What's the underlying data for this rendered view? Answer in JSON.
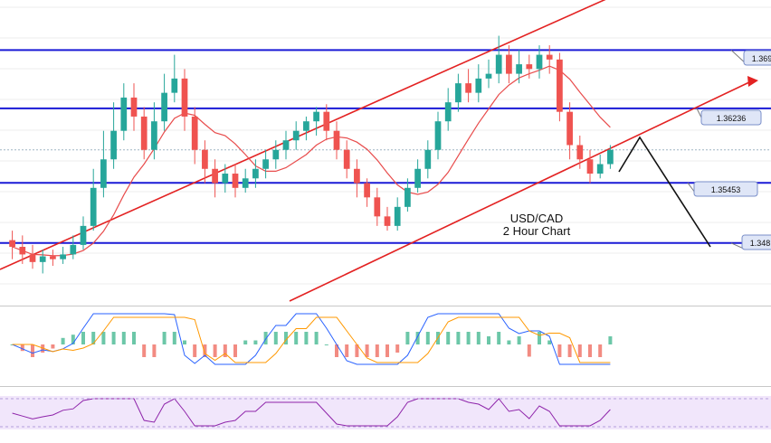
{
  "chart_data": {
    "type": "candlestick",
    "annotation": {
      "line1": "USD/CAD",
      "line2": "2 Hour Chart"
    },
    "price_axis": {
      "ylim": [
        1.342,
        1.373
      ]
    },
    "levels": [
      {
        "label": "1.369",
        "value": 1.3685
      },
      {
        "label": "1.36236",
        "value": 1.36236
      },
      {
        "label": "1.35453",
        "value": 1.35453
      },
      {
        "label": "1.348",
        "value": 1.3482
      }
    ],
    "current_price": 1.358,
    "candles": [
      [
        0,
        1.3485,
        1.3478,
        1.3495,
        1.3465
      ],
      [
        1,
        1.3478,
        1.347,
        1.349,
        1.346
      ],
      [
        2,
        1.347,
        1.3462,
        1.348,
        1.3455
      ],
      [
        3,
        1.3462,
        1.3468,
        1.3475,
        1.345
      ],
      [
        4,
        1.3468,
        1.3465,
        1.3475,
        1.3458
      ],
      [
        5,
        1.3465,
        1.347,
        1.3478,
        1.346
      ],
      [
        6,
        1.347,
        1.348,
        1.349,
        1.3465
      ],
      [
        7,
        1.348,
        1.35,
        1.351,
        1.3475
      ],
      [
        8,
        1.35,
        1.354,
        1.356,
        1.3495
      ],
      [
        9,
        1.354,
        1.357,
        1.36,
        1.353
      ],
      [
        10,
        1.357,
        1.36,
        1.363,
        1.356
      ],
      [
        11,
        1.36,
        1.3635,
        1.365,
        1.359
      ],
      [
        12,
        1.3635,
        1.3615,
        1.365,
        1.36
      ],
      [
        13,
        1.3615,
        1.358,
        1.3625,
        1.357
      ],
      [
        14,
        1.358,
        1.361,
        1.363,
        1.357
      ],
      [
        15,
        1.361,
        1.364,
        1.366,
        1.36
      ],
      [
        16,
        1.364,
        1.3655,
        1.368,
        1.363
      ],
      [
        17,
        1.3655,
        1.3615,
        1.3665,
        1.36
      ],
      [
        18,
        1.3615,
        1.358,
        1.3625,
        1.3565
      ],
      [
        19,
        1.358,
        1.356,
        1.359,
        1.3545
      ],
      [
        20,
        1.356,
        1.3545,
        1.357,
        1.353
      ],
      [
        21,
        1.3545,
        1.3555,
        1.3565,
        1.3535
      ],
      [
        22,
        1.3555,
        1.354,
        1.3565,
        1.353
      ],
      [
        23,
        1.354,
        1.355,
        1.356,
        1.3535
      ],
      [
        24,
        1.355,
        1.356,
        1.357,
        1.354
      ],
      [
        25,
        1.356,
        1.357,
        1.358,
        1.355
      ],
      [
        26,
        1.357,
        1.358,
        1.359,
        1.356
      ],
      [
        27,
        1.358,
        1.359,
        1.36,
        1.357
      ],
      [
        28,
        1.359,
        1.36,
        1.361,
        1.358
      ],
      [
        29,
        1.36,
        1.361,
        1.3615,
        1.359
      ],
      [
        30,
        1.361,
        1.362,
        1.3625,
        1.3595
      ],
      [
        31,
        1.362,
        1.36,
        1.3628,
        1.359
      ],
      [
        32,
        1.36,
        1.358,
        1.361,
        1.357
      ],
      [
        33,
        1.358,
        1.356,
        1.359,
        1.355
      ],
      [
        34,
        1.356,
        1.3545,
        1.357,
        1.353
      ],
      [
        35,
        1.3545,
        1.353,
        1.355,
        1.352
      ],
      [
        36,
        1.353,
        1.351,
        1.354,
        1.35
      ],
      [
        37,
        1.351,
        1.35,
        1.352,
        1.3495
      ],
      [
        38,
        1.35,
        1.352,
        1.353,
        1.3495
      ],
      [
        39,
        1.352,
        1.354,
        1.355,
        1.3515
      ],
      [
        40,
        1.354,
        1.356,
        1.357,
        1.3535
      ],
      [
        41,
        1.356,
        1.358,
        1.359,
        1.355
      ],
      [
        42,
        1.358,
        1.361,
        1.362,
        1.357
      ],
      [
        43,
        1.361,
        1.363,
        1.3645,
        1.36
      ],
      [
        44,
        1.363,
        1.365,
        1.366,
        1.362
      ],
      [
        45,
        1.365,
        1.364,
        1.3665,
        1.363
      ],
      [
        46,
        1.364,
        1.3655,
        1.367,
        1.363
      ],
      [
        47,
        1.3655,
        1.366,
        1.3675,
        1.3645
      ],
      [
        48,
        1.366,
        1.368,
        1.37,
        1.365
      ],
      [
        49,
        1.368,
        1.366,
        1.369,
        1.365
      ],
      [
        50,
        1.366,
        1.367,
        1.3685,
        1.365
      ],
      [
        51,
        1.367,
        1.3665,
        1.368,
        1.3655
      ],
      [
        52,
        1.3665,
        1.368,
        1.369,
        1.3655
      ],
      [
        53,
        1.368,
        1.3675,
        1.369,
        1.366
      ],
      [
        54,
        1.3675,
        1.362,
        1.3682,
        1.361
      ],
      [
        55,
        1.362,
        1.3585,
        1.363,
        1.357
      ],
      [
        56,
        1.3585,
        1.357,
        1.3595,
        1.356
      ],
      [
        57,
        1.357,
        1.3555,
        1.358,
        1.3545
      ],
      [
        58,
        1.3555,
        1.3565,
        1.3575,
        1.355
      ],
      [
        59,
        1.3565,
        1.358,
        1.3585,
        1.356
      ]
    ]
  }
}
